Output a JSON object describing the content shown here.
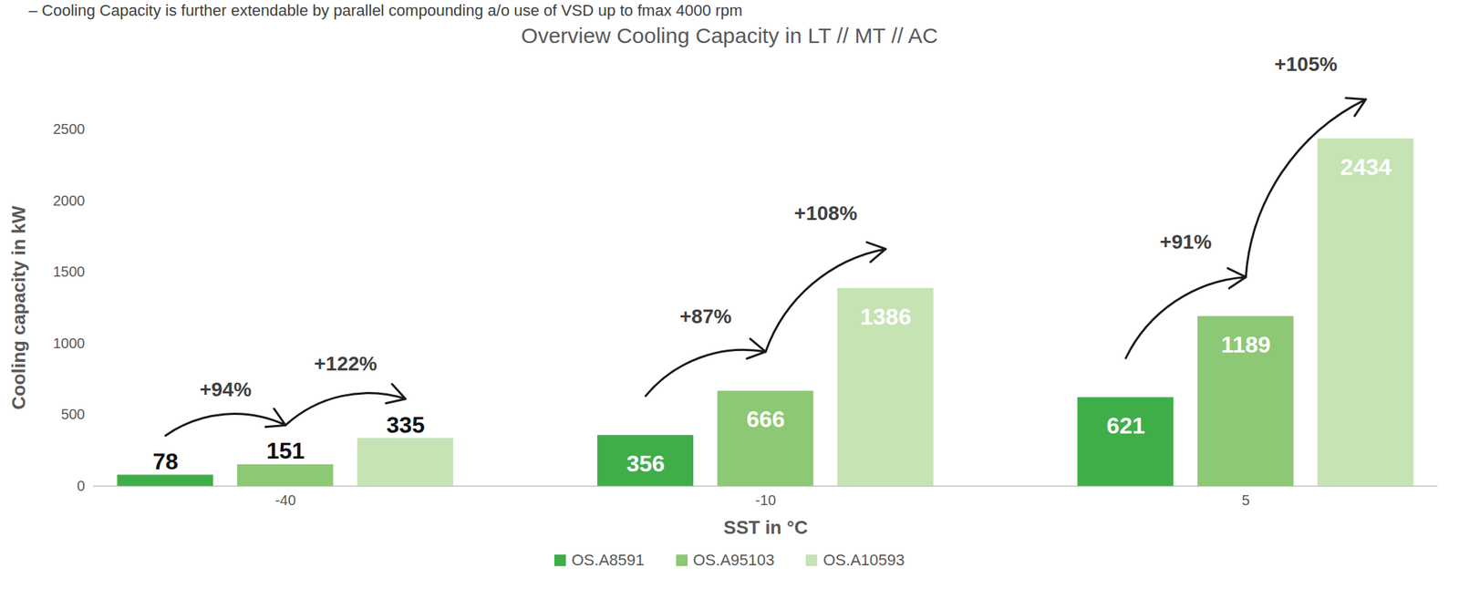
{
  "chart_data": {
    "type": "bar",
    "header": "– Cooling Capacity is further extendable by parallel compounding a/o use of VSD up to fmax 4000 rpm",
    "title": "Overview Cooling Capacity in LT // MT // AC",
    "x_label": "SST in °C",
    "y_label": "Cooling capacity in kW",
    "categories": [
      "-40",
      "-10",
      "5"
    ],
    "series": [
      {
        "name": "OS.A8591",
        "color": "#3fae49",
        "values": [
          78,
          356,
          621
        ]
      },
      {
        "name": "OS.A95103",
        "color": "#8dc875",
        "values": [
          151,
          666,
          1189
        ]
      },
      {
        "name": "OS.A10593",
        "color": "#c6e3b4",
        "values": [
          335,
          1386,
          2434
        ]
      }
    ],
    "ylim": [
      0,
      2500
    ],
    "yticks": [
      0,
      500,
      1000,
      1500,
      2000,
      2500
    ],
    "grid": false,
    "data_labels": true,
    "legend": "bottom",
    "annotations": [
      {
        "text": "+94%",
        "category": "-40",
        "from": "OS.A8591",
        "to": "OS.A95103"
      },
      {
        "text": "+122%",
        "category": "-40",
        "from": "OS.A95103",
        "to": "OS.A10593"
      },
      {
        "text": "+87%",
        "category": "-10",
        "from": "OS.A8591",
        "to": "OS.A95103"
      },
      {
        "text": "+108%",
        "category": "-10",
        "from": "OS.A95103",
        "to": "OS.A10593"
      },
      {
        "text": "+91%",
        "category": "5",
        "from": "OS.A8591",
        "to": "OS.A95103"
      },
      {
        "text": "+105%",
        "category": "5",
        "from": "OS.A95103",
        "to": "OS.A10593"
      }
    ]
  }
}
